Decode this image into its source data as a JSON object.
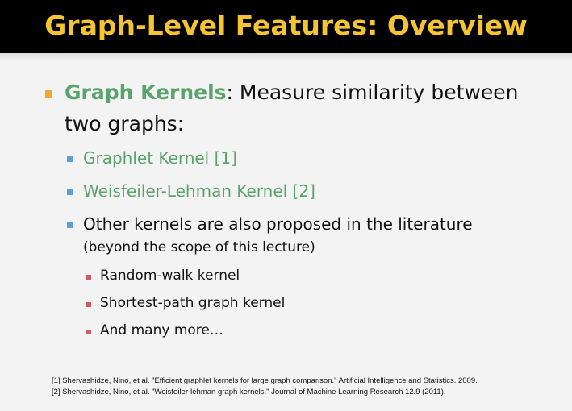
{
  "title": "Graph-Level Features: Overview",
  "main": {
    "bullet1": {
      "term": "Graph Kernels",
      "rest_line1": ": Measure similarity between",
      "rest_line2": "two graphs:"
    },
    "sub_items": [
      "Graphlet Kernel [1]",
      "Weisfeiler-Lehman Kernel [2]"
    ],
    "other": {
      "line1": "Other kernels are also proposed in the literature",
      "line2": "(beyond the scope of this lecture)",
      "items": [
        "Random-walk kernel",
        "Shortest-path graph kernel",
        "And many more…"
      ]
    }
  },
  "references": [
    "[1] Shervashidze, Nino, et al. \"Efficient graphlet kernels for large graph comparison.\" Artificial Intelligence and Statistics. 2009.",
    "[2] Shervashidze, Nino, et al. \"Weisfeiler-lehman graph kernels.\" Journal of Machine Learning Research 12.9 (2011)."
  ],
  "colors": {
    "title": "#f5c433",
    "accent_green": "#5aa36c",
    "bullet_level1": "#f2a92b",
    "bullet_level2": "#5aa0d6",
    "bullet_level3": "#d05a61"
  }
}
